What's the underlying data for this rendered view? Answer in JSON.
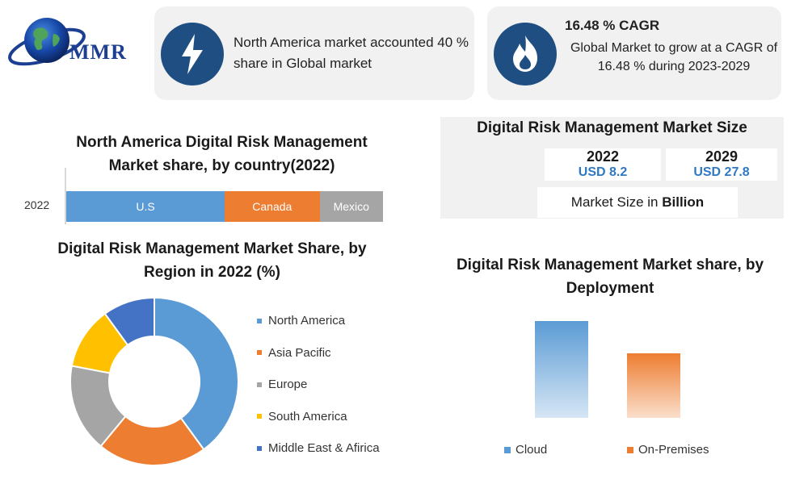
{
  "brand": {
    "logo_text": "MMR"
  },
  "cards": {
    "north_america": {
      "icon": "lightning-bolt-icon",
      "text": "North America market accounted 40 % share in Global market"
    },
    "cagr": {
      "icon": "flame-icon",
      "title": "16.48 % CAGR",
      "text": "Global Market to grow at a CAGR of 16.48 % during 2023-2029"
    }
  },
  "market_size": {
    "title": "Digital Risk Management Market Size",
    "years": [
      {
        "year": "2022",
        "value": "USD 8.2"
      },
      {
        "year": "2029",
        "value": "USD 27.8"
      }
    ],
    "unit_prefix": "Market Size in ",
    "unit_bold": "Billion"
  },
  "colors": {
    "blue": "#5b9bd5",
    "orange": "#ed7d31",
    "gray": "#a5a5a5",
    "yellow": "#ffc000",
    "navy": "#4472c4",
    "dark_blue": "#1f4f82",
    "value_blue": "#2f78c4"
  },
  "chart_data": [
    {
      "type": "bar",
      "orientation": "horizontal-stacked",
      "title": "North America Digital Risk Management Market share, by country(2022)",
      "categories": [
        "2022"
      ],
      "series": [
        {
          "name": "U.S",
          "values": [
            50
          ],
          "color": "#5b9bd5"
        },
        {
          "name": "Canada",
          "values": [
            30
          ],
          "color": "#ed7d31"
        },
        {
          "name": "Mexico",
          "values": [
            20
          ],
          "color": "#a5a5a5"
        }
      ]
    },
    {
      "type": "pie",
      "donut": true,
      "title": "Digital Risk Management Market Share, by Region in 2022 (%)",
      "categories": [
        "North America",
        "Asia Pacific",
        "Europe",
        "South America",
        "Middle East & Afirica"
      ],
      "values": [
        40,
        21,
        17,
        12,
        10
      ],
      "colors": [
        "#5b9bd5",
        "#ed7d31",
        "#a5a5a5",
        "#ffc000",
        "#4472c4"
      ],
      "legend": "right"
    },
    {
      "type": "bar",
      "title": "Digital Risk Management Market share, by Deployment",
      "categories": [
        "Cloud",
        "On-Premises"
      ],
      "values": [
        60,
        40
      ],
      "colors": [
        "#5b9bd5",
        "#ed7d31"
      ],
      "legend": "bottom"
    }
  ]
}
